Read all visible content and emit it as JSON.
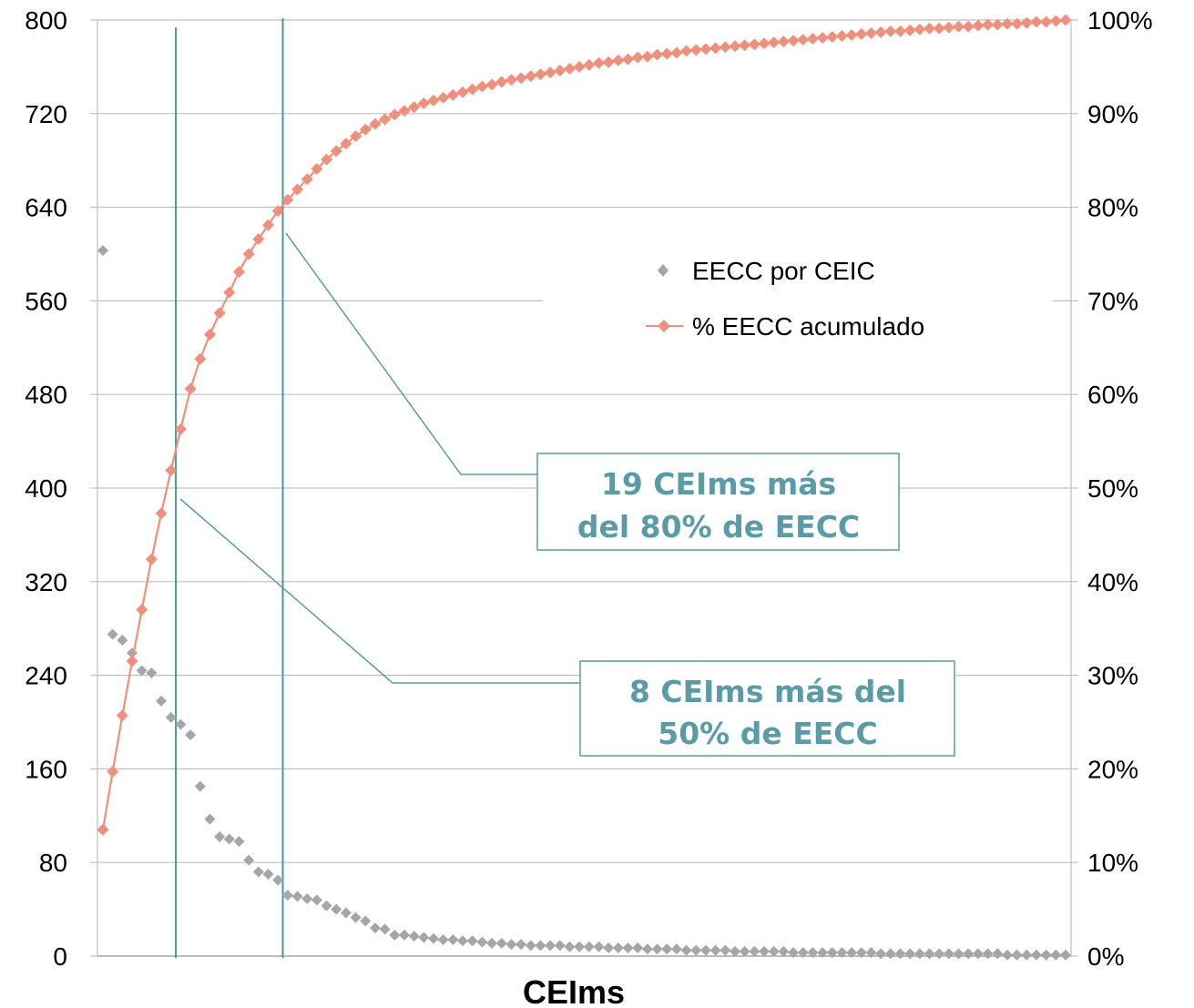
{
  "chart_data": {
    "type": "scatter",
    "xlabel": "CEIms",
    "y_left": {
      "min": 0,
      "max": 800,
      "ticks": [
        "0",
        "80",
        "160",
        "240",
        "320",
        "400",
        "480",
        "560",
        "640",
        "720",
        "800"
      ]
    },
    "y_right": {
      "min": 0,
      "max": 1,
      "ticks": [
        "0%",
        "10%",
        "20%",
        "30%",
        "40%",
        "50%",
        "60%",
        "70%",
        "80%",
        "90%",
        "100%"
      ]
    },
    "grid": true,
    "legend_position": "right-middle",
    "series": [
      {
        "name": "EECC por CEIC",
        "kind": "scatter",
        "axis": "left",
        "color": "#a6a6a6",
        "marker": "diamond",
        "values": [
          603,
          275,
          270,
          259,
          244,
          242,
          218,
          204,
          198,
          189,
          145,
          117,
          102,
          100,
          98,
          82,
          72,
          70,
          65,
          52,
          51,
          49,
          48,
          43,
          40,
          37,
          33,
          30,
          24,
          23,
          18,
          18,
          17,
          16,
          15,
          14,
          14,
          13,
          13,
          12,
          11,
          11,
          10,
          10,
          9,
          9,
          9,
          9,
          8,
          8,
          8,
          8,
          7,
          7,
          7,
          7,
          6,
          6,
          6,
          6,
          5,
          5,
          5,
          5,
          5,
          4,
          4,
          4,
          4,
          4,
          4,
          3,
          3,
          3,
          3,
          3,
          3,
          3,
          3,
          3,
          2,
          2,
          2,
          2,
          2,
          2,
          2,
          2,
          2,
          2,
          2,
          2,
          2,
          1,
          1,
          1,
          1,
          1,
          1,
          1
        ]
      },
      {
        "name": "% EECC acumulado",
        "kind": "line",
        "axis": "right",
        "color": "#f0907c",
        "marker": "diamond",
        "values": [
          0.135,
          0.197,
          0.257,
          0.315,
          0.37,
          0.424,
          0.473,
          0.519,
          0.563,
          0.606,
          0.638,
          0.664,
          0.687,
          0.709,
          0.731,
          0.75,
          0.766,
          0.781,
          0.796,
          0.808,
          0.819,
          0.83,
          0.841,
          0.851,
          0.86,
          0.868,
          0.876,
          0.883,
          0.889,
          0.894,
          0.899,
          0.903,
          0.907,
          0.911,
          0.914,
          0.917,
          0.92,
          0.923,
          0.926,
          0.929,
          0.931,
          0.934,
          0.936,
          0.938,
          0.94,
          0.942,
          0.944,
          0.946,
          0.948,
          0.95,
          0.952,
          0.954,
          0.955,
          0.957,
          0.958,
          0.96,
          0.961,
          0.963,
          0.964,
          0.965,
          0.967,
          0.968,
          0.969,
          0.97,
          0.971,
          0.972,
          0.973,
          0.974,
          0.975,
          0.976,
          0.977,
          0.978,
          0.979,
          0.98,
          0.981,
          0.982,
          0.983,
          0.984,
          0.985,
          0.986,
          0.987,
          0.988,
          0.988,
          0.989,
          0.99,
          0.991,
          0.991,
          0.992,
          0.993,
          0.993,
          0.994,
          0.995,
          0.995,
          0.996,
          0.996,
          0.997,
          0.998,
          0.998,
          0.999,
          1.0
        ]
      }
    ],
    "reference_lines": [
      {
        "x_index": 7.5
      },
      {
        "x_index": 18.5
      }
    ],
    "annotations": [
      {
        "lines": [
          "19 CEIms más",
          "del 80% de EECC"
        ],
        "color": "#5a9ba8",
        "points_to_x_index": 18.5,
        "points_to_value": 0.8
      },
      {
        "lines": [
          "8 CEIms más del",
          "50% de EECC"
        ],
        "color": "#5a9ba8",
        "points_to_x_index": 7.5,
        "points_to_value": 0.5
      }
    ]
  }
}
